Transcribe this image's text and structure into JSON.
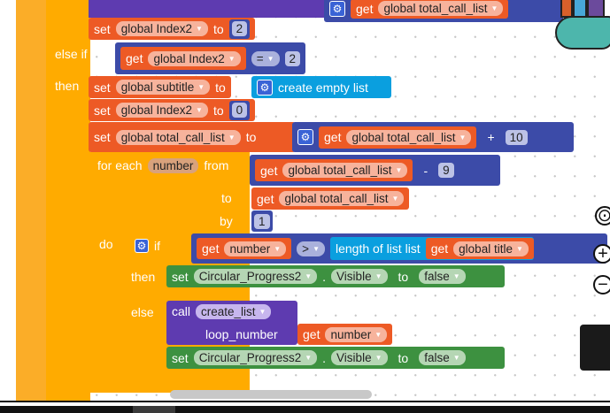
{
  "blocks": {
    "top_get": {
      "kw": "get",
      "var": "global total_call_list"
    },
    "set1": {
      "kw": "set",
      "var": "global Index2",
      "to": "to",
      "val": "2"
    },
    "elseif_label": "else if",
    "then_label": "then",
    "cond": {
      "kw": "get",
      "var": "global Index2",
      "op": "=",
      "val": "2"
    },
    "set2": {
      "kw": "set",
      "var": "global subtitle",
      "to": "to",
      "val": "create empty list"
    },
    "set3": {
      "kw": "set",
      "var": "global Index2",
      "to": "to",
      "val": "0"
    },
    "set4": {
      "kw": "set",
      "var": "global total_call_list",
      "to": "to",
      "get": "get",
      "getvar": "global total_call_list",
      "op": "+",
      "val": "10"
    },
    "foreach": {
      "label": "for each",
      "var": "number",
      "from": "from",
      "to": "to",
      "by": "by",
      "do": "do",
      "from_get": "get",
      "from_var": "global total_call_list",
      "from_op": "-",
      "from_val": "9",
      "to_get": "get",
      "to_var": "global total_call_list",
      "by_val": "1"
    },
    "if": {
      "label": "if",
      "then": "then",
      "else": "else",
      "get": "get",
      "var": "number",
      "op": ">",
      "len": "length of list  list",
      "get2": "get",
      "var2": "global title"
    },
    "set_vis1": {
      "kw": "set",
      "comp": "Circular_Progress2",
      "prop": "Visible",
      "to": "to",
      "val": "false"
    },
    "call": {
      "kw": "call",
      "proc": "create_list",
      "arg": "loop_number",
      "get": "get",
      "var": "number"
    },
    "set_vis2": {
      "kw": "set",
      "comp": "Circular_Progress2",
      "prop": "Visible",
      "to": "to",
      "val": "false"
    }
  },
  "controls": {
    "center_icon": "target-icon",
    "zoom_in": "+",
    "zoom_out": "−",
    "trash": "trash-icon"
  },
  "colors": {
    "variables": "#ed5a25",
    "control": "#ffab00",
    "math": "#3c4ba8",
    "lists": "#0a9fdf",
    "components": "#3d9140",
    "procedures": "#5e3bb0"
  }
}
